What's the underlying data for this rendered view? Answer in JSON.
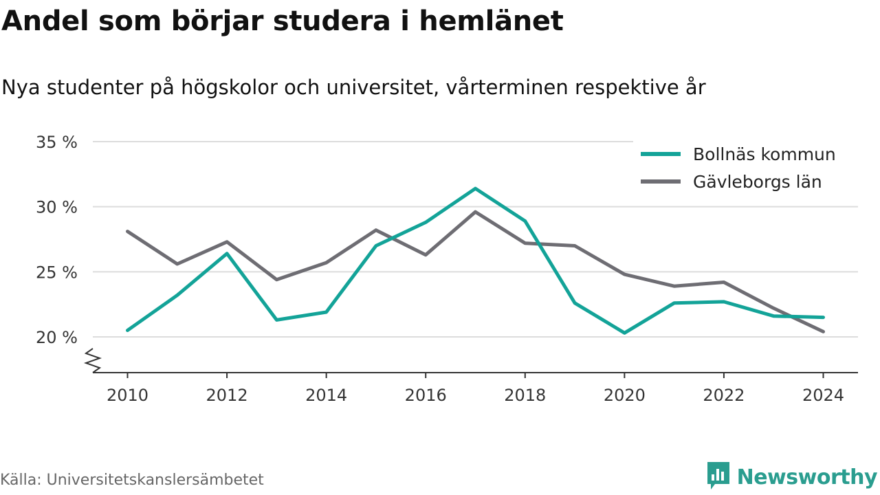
{
  "title": "Andel som börjar studera i hemlänet",
  "subtitle": "Nya studenter på högskolor och universitet, vårterminen respektive år",
  "source": "Källa: Universitetskanslersämbetet",
  "brand": {
    "name": "Newsworthy",
    "logo_icon": "bar-chart-speech-bubble-icon",
    "color": "#2a9d8f"
  },
  "chart_data": {
    "type": "line",
    "x": [
      2010,
      2011,
      2012,
      2013,
      2014,
      2015,
      2016,
      2017,
      2018,
      2019,
      2020,
      2021,
      2022,
      2023,
      2024
    ],
    "series": [
      {
        "name": "Bollnäs kommun",
        "color": "#13a398",
        "values": [
          20.5,
          23.2,
          26.4,
          21.3,
          21.9,
          27.0,
          28.8,
          31.4,
          28.9,
          22.6,
          20.3,
          22.6,
          22.7,
          21.6,
          21.5
        ]
      },
      {
        "name": "Gävleborgs län",
        "color": "#6e6d73",
        "values": [
          28.1,
          25.6,
          27.3,
          24.4,
          25.7,
          28.2,
          26.3,
          29.6,
          27.2,
          27.0,
          24.8,
          23.9,
          24.2,
          22.2,
          20.4
        ]
      }
    ],
    "yticks": [
      "20 %",
      "25 %",
      "30 %",
      "35 %"
    ],
    "ytick_values": [
      20,
      25,
      30,
      35
    ],
    "xticks": [
      "2010",
      "2012",
      "2014",
      "2016",
      "2018",
      "2020",
      "2022",
      "2024"
    ],
    "xtick_values": [
      2010,
      2012,
      2014,
      2016,
      2018,
      2020,
      2022,
      2024
    ],
    "ylim": [
      20,
      35
    ],
    "y_axis_broken": true,
    "grid": true,
    "legend_position": "top-right"
  }
}
